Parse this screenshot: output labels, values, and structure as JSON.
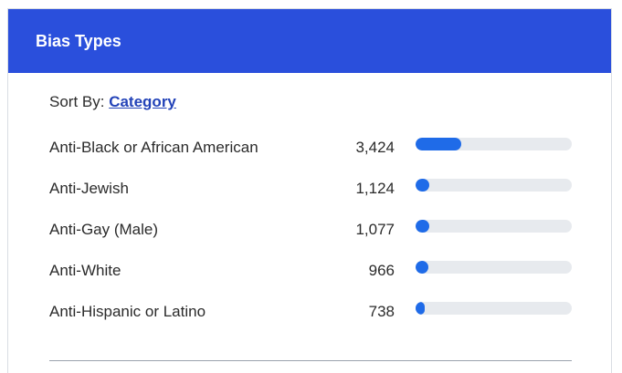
{
  "header": {
    "title": "Bias Types"
  },
  "sort": {
    "label": "Sort By:",
    "value": "Category"
  },
  "colors": {
    "header_bg": "#2a4fdc",
    "bar_fill": "#1f6be8",
    "bar_track": "#e7eaee"
  },
  "rows": [
    {
      "label": "Anti-Black or African American",
      "value": "3,424",
      "fill_fraction": 0.29
    },
    {
      "label": "Anti-Jewish",
      "value": "1,124",
      "fill_fraction": 0.09
    },
    {
      "label": "Anti-Gay (Male)",
      "value": "1,077",
      "fill_fraction": 0.09
    },
    {
      "label": "Anti-White",
      "value": "966",
      "fill_fraction": 0.08
    },
    {
      "label": "Anti-Hispanic or Latino",
      "value": "738",
      "fill_fraction": 0.06
    }
  ]
}
